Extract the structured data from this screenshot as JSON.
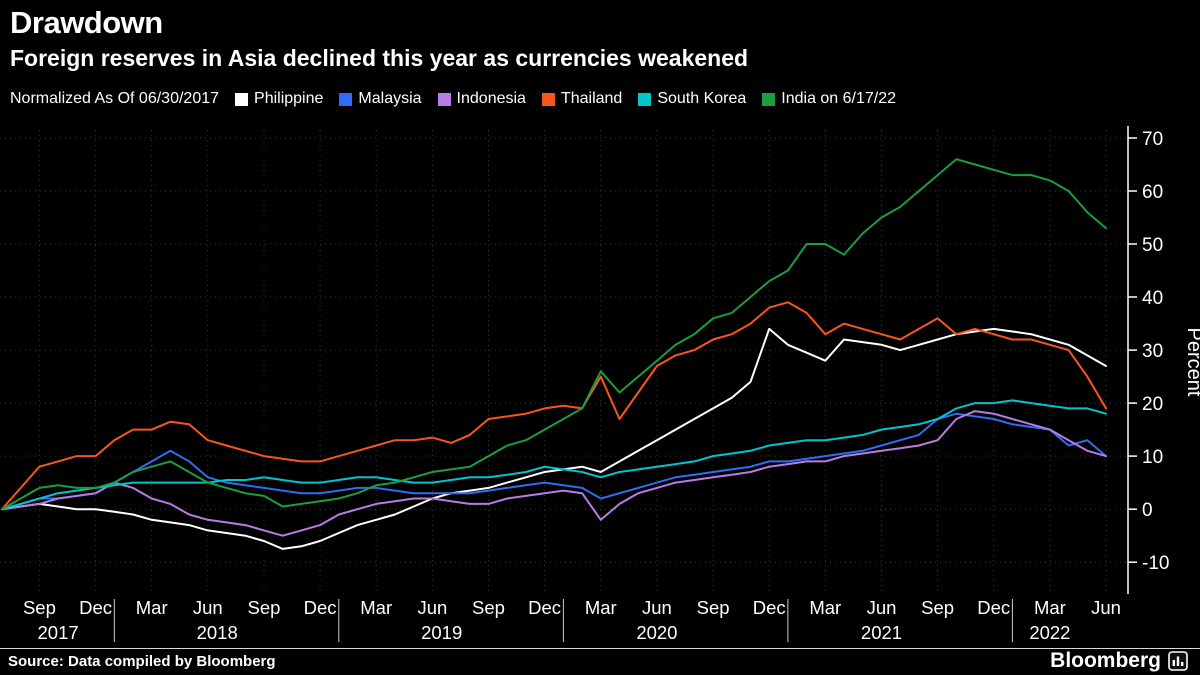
{
  "header": {
    "title": "Drawdown",
    "subtitle": "Foreign reserves in Asia declined this year as currencies weakened"
  },
  "legend": {
    "note": "Normalized As Of 06/30/2017",
    "items": [
      {
        "label": "Philippine",
        "color": "#ffffff"
      },
      {
        "label": "Malaysia",
        "color": "#2e6df4"
      },
      {
        "label": "Indonesia",
        "color": "#b97ce6"
      },
      {
        "label": "Thailand",
        "color": "#f9561e"
      },
      {
        "label": "South Korea",
        "color": "#00c5cc"
      },
      {
        "label": "India on 6/17/22",
        "color": "#1c9e3e"
      }
    ]
  },
  "footer": {
    "source": "Source: Data compiled by Bloomberg",
    "brand": "Bloomberg"
  },
  "chart_data": {
    "type": "line",
    "title": "Drawdown",
    "subtitle": "Foreign reserves in Asia declined this year as currencies weakened",
    "ylabel": "Percent",
    "ylim": [
      -16,
      71.5
    ],
    "yticks": [
      70,
      60,
      50,
      40,
      30,
      20,
      10,
      0,
      -10
    ],
    "x_unit": "monthly from 2017-07 to 2022-06",
    "x_ticks": [
      {
        "label": "Sep",
        "month": 2
      },
      {
        "label": "Dec",
        "month": 5
      },
      {
        "label": "Mar",
        "month": 8
      },
      {
        "label": "Jun",
        "month": 11
      },
      {
        "label": "Sep",
        "month": 14
      },
      {
        "label": "Dec",
        "month": 17
      },
      {
        "label": "Mar",
        "month": 20
      },
      {
        "label": "Jun",
        "month": 23
      },
      {
        "label": "Sep",
        "month": 26
      },
      {
        "label": "Dec",
        "month": 29
      },
      {
        "label": "Mar",
        "month": 32
      },
      {
        "label": "Jun",
        "month": 35
      },
      {
        "label": "Sep",
        "month": 38
      },
      {
        "label": "Dec",
        "month": 41
      },
      {
        "label": "Mar",
        "month": 44
      },
      {
        "label": "Jun",
        "month": 47
      },
      {
        "label": "Sep",
        "month": 50
      },
      {
        "label": "Dec",
        "month": 53
      },
      {
        "label": "Mar",
        "month": 56
      },
      {
        "label": "Jun",
        "month": 59
      }
    ],
    "year_labels": [
      {
        "label": "2017",
        "month": 3
      },
      {
        "label": "2018",
        "month": 11.5
      },
      {
        "label": "2019",
        "month": 23.5
      },
      {
        "label": "2020",
        "month": 35
      },
      {
        "label": "2021",
        "month": 47
      },
      {
        "label": "2022",
        "month": 56
      }
    ],
    "year_boundary_months": [
      6,
      18,
      30,
      42,
      54
    ],
    "series": [
      {
        "name": "Philippine",
        "color": "#ffffff",
        "values": [
          0,
          0.5,
          1,
          0.5,
          0,
          0,
          -0.5,
          -1,
          -2,
          -2.5,
          -3,
          -4,
          -4.5,
          -5,
          -6,
          -7.5,
          -7,
          -6,
          -4.5,
          -3,
          -2,
          -1,
          0.5,
          2,
          3,
          3.5,
          4,
          5,
          6,
          7,
          7.5,
          8,
          7,
          9,
          11,
          13,
          15,
          17,
          19,
          21,
          24,
          34,
          31,
          29.5,
          28,
          32,
          31.5,
          31,
          30,
          31,
          32,
          33,
          33.5,
          34,
          33.5,
          33,
          32,
          31,
          29,
          27
        ]
      },
      {
        "name": "Malaysia",
        "color": "#2e6df4",
        "values": [
          0,
          1,
          2,
          2,
          2.5,
          3,
          5,
          7,
          9,
          11,
          9,
          6,
          5,
          4.5,
          4,
          3.5,
          3,
          3,
          3.5,
          4,
          4,
          3.5,
          3,
          3,
          3,
          3,
          3.5,
          4,
          4.5,
          5,
          4.5,
          4,
          2,
          3,
          4,
          5,
          6,
          6.5,
          7,
          7.5,
          8,
          9,
          9,
          9.5,
          10,
          10.5,
          11,
          12,
          13,
          14,
          17,
          18,
          17.5,
          17,
          16,
          15.5,
          15,
          12,
          13,
          10
        ]
      },
      {
        "name": "Indonesia",
        "color": "#b97ce6",
        "values": [
          0,
          0.5,
          1,
          2,
          2.5,
          3,
          5,
          4,
          2,
          1,
          -1,
          -2,
          -2.5,
          -3,
          -4,
          -5,
          -4,
          -3,
          -1,
          0,
          1,
          1.5,
          2,
          2,
          1.5,
          1,
          1,
          2,
          2.5,
          3,
          3.5,
          3,
          -2,
          1,
          3,
          4,
          5,
          5.5,
          6,
          6.5,
          7,
          8,
          8.5,
          9,
          9,
          10,
          10.5,
          11,
          11.5,
          12,
          13,
          17,
          18.5,
          18,
          17,
          16,
          15,
          13,
          11,
          10
        ]
      },
      {
        "name": "Thailand",
        "color": "#f9561e",
        "values": [
          0,
          4,
          8,
          9,
          10,
          10,
          13,
          15,
          15,
          16.5,
          16,
          13,
          12,
          11,
          10,
          9.5,
          9,
          9,
          10,
          11,
          12,
          13,
          13,
          13.5,
          12.5,
          14,
          17,
          17.5,
          18,
          19,
          19.5,
          19,
          25,
          17,
          22,
          27,
          29,
          30,
          32,
          33,
          35,
          38,
          39,
          37,
          33,
          35,
          34,
          33,
          32,
          34,
          36,
          33,
          34,
          33,
          32,
          32,
          31,
          30,
          25,
          19
        ]
      },
      {
        "name": "South Korea",
        "color": "#00c5cc",
        "values": [
          0,
          1,
          2,
          3,
          3.5,
          4,
          4.5,
          5,
          5,
          5,
          5,
          5,
          5.5,
          5.5,
          6,
          5.5,
          5,
          5,
          5.5,
          6,
          6,
          5.5,
          5,
          5,
          5.5,
          6,
          6,
          6.5,
          7,
          8,
          7.5,
          7,
          6,
          7,
          7.5,
          8,
          8.5,
          9,
          10,
          10.5,
          11,
          12,
          12.5,
          13,
          13,
          13.5,
          14,
          15,
          15.5,
          16,
          17,
          19,
          20,
          20,
          20.5,
          20,
          19.5,
          19,
          19,
          18
        ]
      },
      {
        "name": "India",
        "color": "#1c9e3e",
        "values": [
          0,
          2,
          4,
          4.5,
          4,
          4,
          5,
          7,
          8,
          9,
          7,
          5,
          4,
          3,
          2.5,
          0.5,
          1,
          1.5,
          2,
          3,
          4.5,
          5,
          6,
          7,
          7.5,
          8,
          10,
          12,
          13,
          15,
          17,
          19,
          26,
          22,
          25,
          28,
          31,
          33,
          36,
          37,
          40,
          43,
          45,
          50,
          50,
          48,
          52,
          55,
          57,
          60,
          63,
          66,
          65,
          64,
          63,
          63,
          62,
          60,
          56,
          53
        ]
      }
    ]
  }
}
